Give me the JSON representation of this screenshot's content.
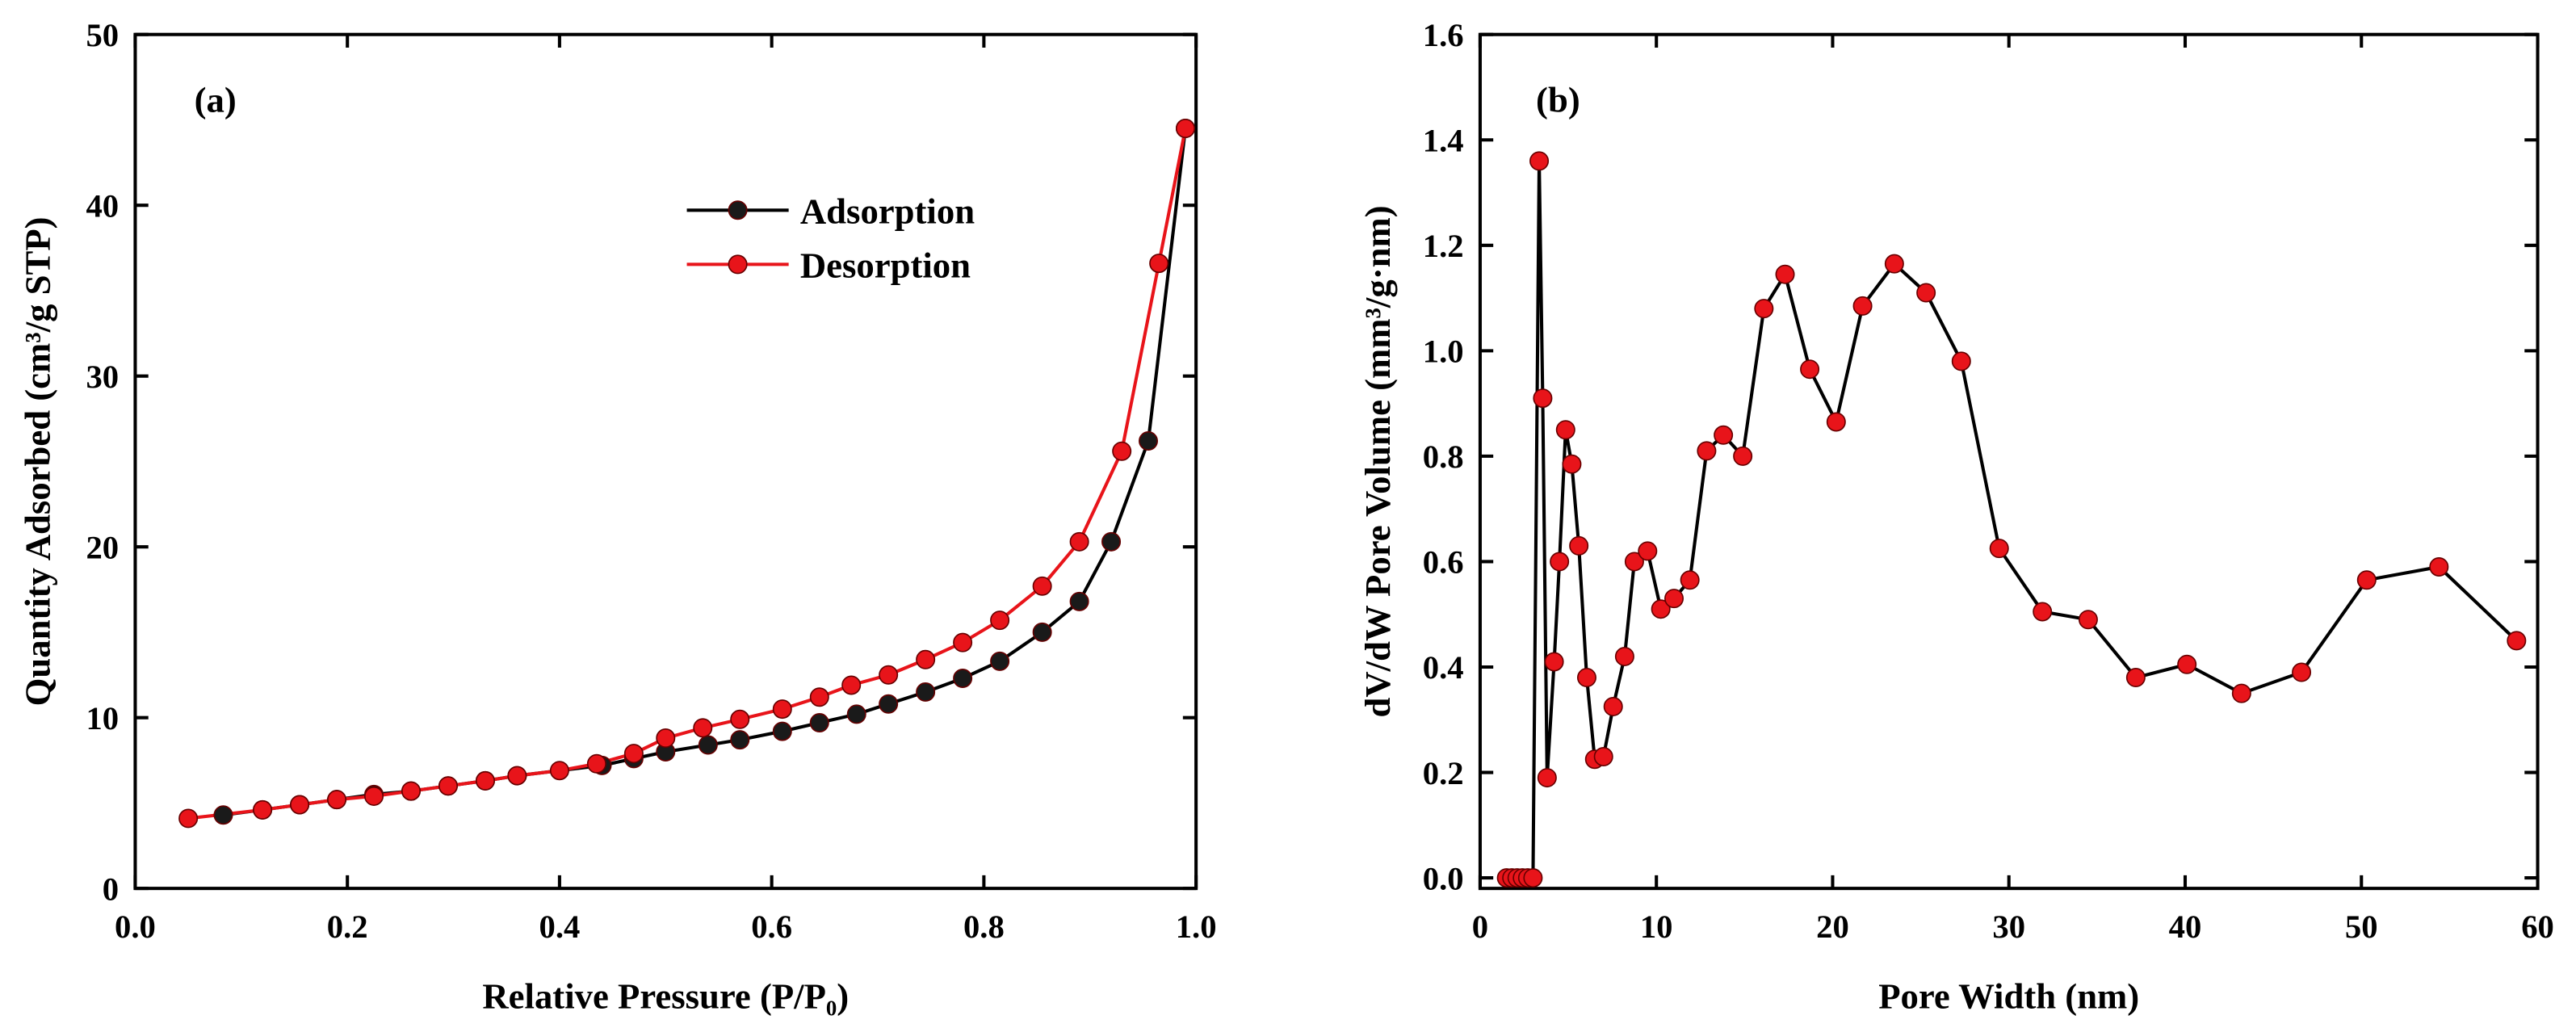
{
  "chart_data": [
    {
      "type": "line",
      "annotation": "(a)",
      "xlabel": "Relative Pressure (P/P₀)",
      "ylabel": "Quantity Adsorbed (cm³/g STP)",
      "xlim": [
        0,
        1
      ],
      "ylim": [
        0,
        50
      ],
      "xticks": [
        {
          "value": 0,
          "label": "0.0"
        },
        {
          "value": 0.2,
          "label": "0.2"
        },
        {
          "value": 0.4,
          "label": "0.4"
        },
        {
          "value": 0.6,
          "label": "0.6"
        },
        {
          "value": 0.8,
          "label": "0.8"
        },
        {
          "value": 1,
          "label": "1.0"
        }
      ],
      "yticks": [
        0,
        10,
        20,
        30,
        40,
        50
      ],
      "legend": "upper center",
      "series": [
        {
          "name": "Adsorption",
          "color": "#000000",
          "marker_color": "#1a1a1a",
          "x": [
            0.083,
            0.12,
            0.155,
            0.19,
            0.225,
            0.26,
            0.295,
            0.33,
            0.36,
            0.44,
            0.47,
            0.5,
            0.54,
            0.57,
            0.61,
            0.645,
            0.68,
            0.71,
            0.745,
            0.78,
            0.815,
            0.855,
            0.89,
            0.92,
            0.955,
            0.99
          ],
          "values": [
            4.3,
            4.6,
            4.9,
            5.2,
            5.5,
            5.7,
            6.0,
            6.3,
            6.6,
            7.2,
            7.6,
            8.0,
            8.4,
            8.7,
            9.2,
            9.7,
            10.2,
            10.8,
            11.5,
            12.3,
            13.3,
            15.0,
            16.8,
            20.3,
            26.2,
            44.5
          ]
        },
        {
          "name": "Desorption",
          "color": "#e8141a",
          "marker_color": "#e8141a",
          "x": [
            0.05,
            0.12,
            0.155,
            0.19,
            0.225,
            0.26,
            0.295,
            0.33,
            0.36,
            0.4,
            0.435,
            0.47,
            0.5,
            0.535,
            0.57,
            0.61,
            0.645,
            0.675,
            0.71,
            0.745,
            0.78,
            0.815,
            0.855,
            0.89,
            0.93,
            0.965,
            0.99
          ],
          "values": [
            4.1,
            4.6,
            4.9,
            5.2,
            5.4,
            5.7,
            6.0,
            6.3,
            6.6,
            6.9,
            7.3,
            7.9,
            8.8,
            9.4,
            9.9,
            10.5,
            11.2,
            11.9,
            12.5,
            13.4,
            14.4,
            15.7,
            17.7,
            20.3,
            25.6,
            36.6,
            44.5
          ]
        }
      ]
    },
    {
      "type": "line",
      "annotation": "(b)",
      "xlabel": "Pore Width (nm)",
      "ylabel": "dV/dW Pore Volume (mm³/g·nm)",
      "xlim": [
        0,
        60
      ],
      "ylim": [
        -0.02,
        1.6
      ],
      "xticks": [
        0,
        10,
        20,
        30,
        40,
        50,
        60
      ],
      "yticks": [
        {
          "value": 0,
          "label": "0.0"
        },
        {
          "value": 0.2,
          "label": "0.2"
        },
        {
          "value": 0.4,
          "label": "0.4"
        },
        {
          "value": 0.6,
          "label": "0.6"
        },
        {
          "value": 0.8,
          "label": "0.8"
        },
        {
          "value": 1,
          "label": "1.0"
        },
        {
          "value": 1.2,
          "label": "1.2"
        },
        {
          "value": 1.4,
          "label": "1.4"
        },
        {
          "value": 1.6,
          "label": "1.6"
        }
      ],
      "series": [
        {
          "color": "#000000",
          "marker_color": "#e8141a",
          "x": [
            1.5,
            1.8,
            2.1,
            2.4,
            2.7,
            3.0,
            3.35,
            3.55,
            3.8,
            4.2,
            4.5,
            4.85,
            5.2,
            5.6,
            6.05,
            6.5,
            7.0,
            7.55,
            8.2,
            8.75,
            9.5,
            10.25,
            11.0,
            11.9,
            12.85,
            13.8,
            14.9,
            16.1,
            17.3,
            18.7,
            20.2,
            21.7,
            23.5,
            25.3,
            27.3,
            29.45,
            31.9,
            34.5,
            37.2,
            40.1,
            43.2,
            46.6,
            50.3,
            54.4,
            58.8
          ],
          "values": [
            0,
            0,
            0,
            0,
            0,
            0,
            1.36,
            0.91,
            0.19,
            0.41,
            0.6,
            0.85,
            0.785,
            0.63,
            0.38,
            0.225,
            0.23,
            0.325,
            0.42,
            0.6,
            0.62,
            0.51,
            0.53,
            0.565,
            0.81,
            0.84,
            0.8,
            1.08,
            1.145,
            0.965,
            0.865,
            1.085,
            1.165,
            1.11,
            0.98,
            0.625,
            0.505,
            0.49,
            0.38,
            0.405,
            0.35,
            0.39,
            0.565,
            0.59,
            0.45
          ]
        }
      ]
    }
  ]
}
